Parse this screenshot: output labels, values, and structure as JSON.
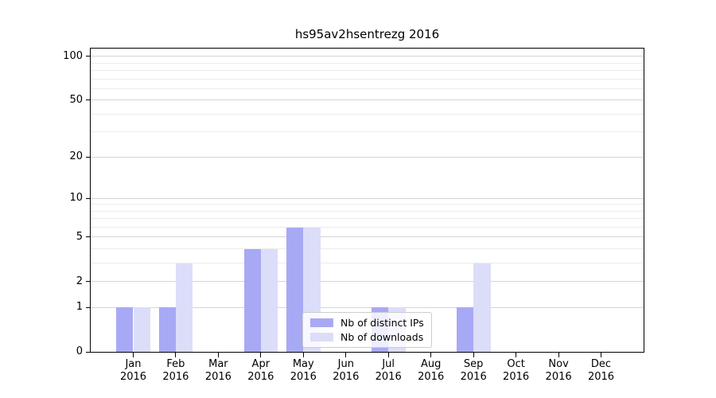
{
  "chart_data": {
    "type": "bar",
    "title": "hs95av2hsentrezg 2016",
    "categories": [
      "Jan",
      "Feb",
      "Mar",
      "Apr",
      "May",
      "Jun",
      "Jul",
      "Aug",
      "Sep",
      "Oct",
      "Nov",
      "Dec"
    ],
    "x_year_label": "2016",
    "series": [
      {
        "name": "Nb of distinct IPs",
        "color": "#a8a9f4",
        "values": [
          1,
          1,
          0,
          4,
          6,
          0,
          1,
          0,
          1,
          0,
          0,
          0
        ]
      },
      {
        "name": "Nb of downloads",
        "color": "#dcddf9",
        "values": [
          1,
          3,
          0,
          4,
          6,
          0,
          1,
          0,
          3,
          0,
          0,
          0
        ]
      }
    ],
    "xlabel": "",
    "ylabel": "",
    "y_axis": {
      "scale": "log1p",
      "ticks_major": [
        0,
        1,
        2,
        5,
        10,
        20,
        50,
        100
      ],
      "ticks_minor": [
        3,
        4,
        6,
        7,
        8,
        9,
        30,
        40,
        60,
        70,
        80,
        90
      ],
      "ylim": [
        0,
        113
      ]
    },
    "bar_width_fraction": 0.4,
    "grid": true,
    "legend": {
      "position": "lower-center",
      "labels": [
        "Nb of distinct IPs",
        "Nb of downloads"
      ]
    }
  },
  "colors": {
    "grid_major": "#d4d4d4",
    "grid_minor": "#ececec",
    "spine": "#000000",
    "legend_border": "#cccccc",
    "background": "#ffffff"
  }
}
